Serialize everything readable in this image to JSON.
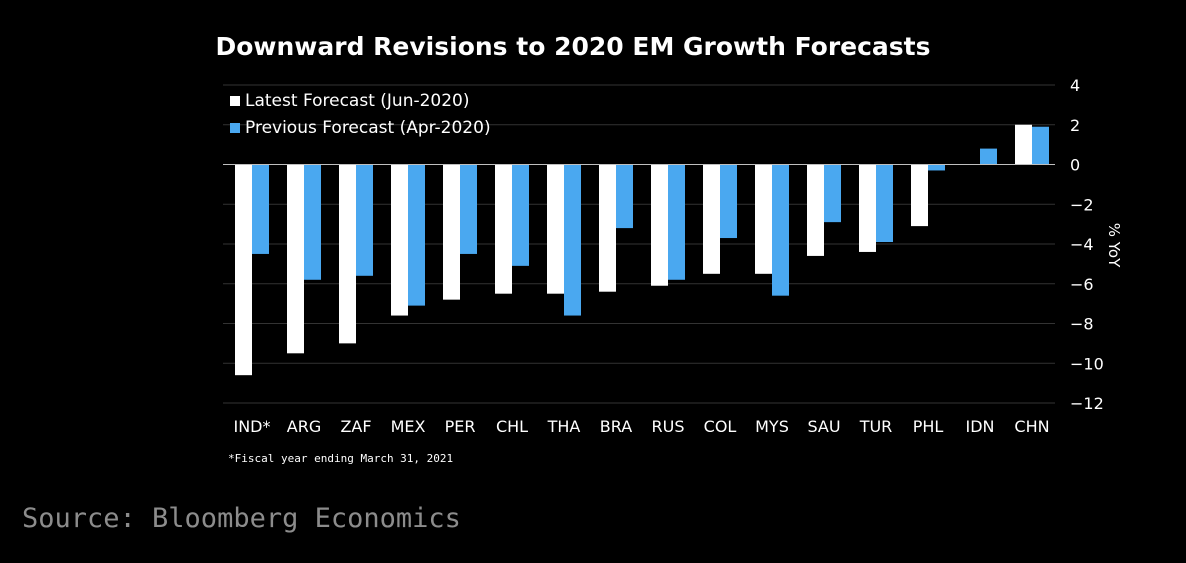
{
  "chart_data": {
    "type": "bar",
    "title": "Downward Revisions to 2020 EM Growth Forecasts",
    "ylabel": "% YoY",
    "ylim": [
      -12,
      4
    ],
    "yticks": [
      4,
      2,
      0,
      -2,
      -4,
      -6,
      -8,
      -10,
      -12
    ],
    "grid": true,
    "legend_position": "top-left",
    "categories": [
      "IND*",
      "ARG",
      "ZAF",
      "MEX",
      "PER",
      "CHL",
      "THA",
      "BRA",
      "RUS",
      "COL",
      "MYS",
      "SAU",
      "TUR",
      "PHL",
      "IDN",
      "CHN"
    ],
    "series": [
      {
        "name": "Latest Forecast (Jun-2020)",
        "color": "#ffffff",
        "values": [
          -10.6,
          -9.5,
          -9.0,
          -7.6,
          -6.8,
          -6.5,
          -6.5,
          -6.4,
          -6.1,
          -5.5,
          -5.5,
          -4.6,
          -4.4,
          -3.1,
          0,
          2.0
        ]
      },
      {
        "name": "Previous Forecast (Apr-2020)",
        "color": "#4aa8f0",
        "values": [
          -4.5,
          -5.8,
          -5.6,
          -7.1,
          -4.5,
          -5.1,
          -7.6,
          -3.2,
          -5.8,
          -3.7,
          -6.6,
          -2.9,
          -3.9,
          -0.3,
          0.8,
          1.9
        ]
      }
    ],
    "footnote": "*Fiscal year ending March 31, 2021"
  },
  "source": "Source: Bloomberg Economics",
  "colors": {
    "background": "#000000",
    "grid": "#333333",
    "axis_text": "#ffffff",
    "source_text": "#8c8c8c"
  }
}
